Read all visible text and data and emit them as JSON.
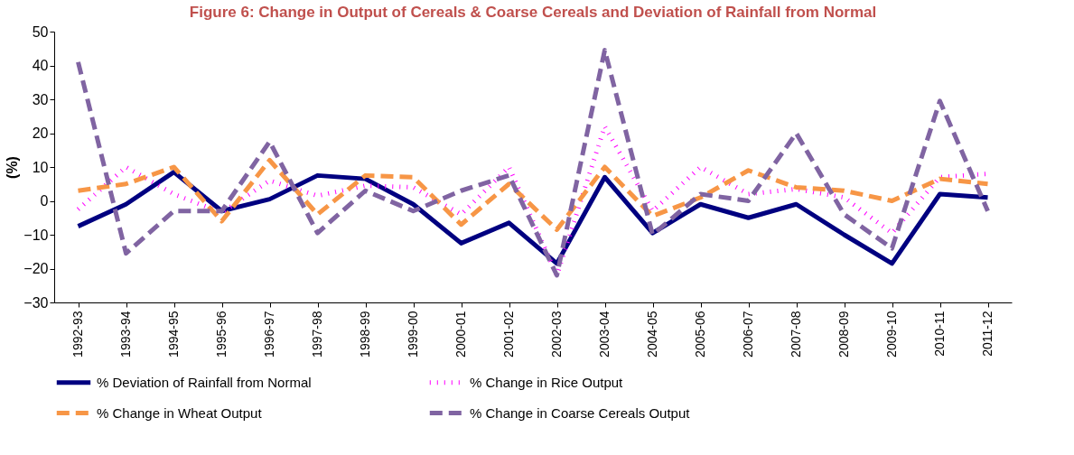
{
  "chart_data": {
    "type": "line",
    "title": "Figure 6: Change in Output of Cereals & Coarse Cereals and Deviation of Rainfall from Normal",
    "ylabel": "(%)",
    "categories": [
      "1992-93",
      "1993-94",
      "1994-95",
      "1995-96",
      "1996-97",
      "1997-98",
      "1998-99",
      "1999-00",
      "2000-01",
      "2001-02",
      "2002-03",
      "2003-04",
      "2004-05",
      "2005-06",
      "2006-07",
      "2007-08",
      "2008-09",
      "2009-10",
      "2010-11",
      "2011-12"
    ],
    "series": [
      {
        "name": "% Deviation of Rainfall from Normal",
        "color": "#000080",
        "line_style": "solid",
        "values": [
          -7.5,
          -1,
          8.5,
          -3,
          0.5,
          7.5,
          6.5,
          -1,
          -12.5,
          -6.5,
          -18.5,
          7,
          -9.5,
          -1,
          -5,
          -1,
          -10,
          -18.5,
          2,
          1
        ]
      },
      {
        "name": "% Change in Rice Output",
        "color": "#ff00ff",
        "line_style": "dotted",
        "values": [
          -2.5,
          10,
          2,
          -3.5,
          6,
          1.5,
          4.5,
          4,
          -4,
          10,
          -22,
          22,
          -3,
          10,
          2,
          3.5,
          1,
          -9.5,
          7,
          8
        ]
      },
      {
        "name": "% Change in Wheat Output",
        "color": "#f79646",
        "line_style": "dashed",
        "values": [
          3,
          5,
          10,
          -6,
          12,
          -4,
          7.5,
          7,
          -7,
          5,
          -8.5,
          10,
          -4.5,
          1,
          9,
          4,
          3,
          0,
          6.5,
          5
        ]
      },
      {
        "name": "% Change in Coarse Cereals Output",
        "color": "#8064a2",
        "line_style": "dashed",
        "values": [
          41,
          -15.5,
          -3,
          -3,
          17.5,
          -9.5,
          3,
          -3,
          3,
          7.5,
          -22,
          44.5,
          -10,
          2,
          0,
          20,
          -4,
          -14,
          29.5,
          -3
        ]
      }
    ],
    "ylim": [
      -30,
      50
    ],
    "yticks": [
      -30,
      -20,
      -10,
      0,
      10,
      20,
      30,
      40,
      50
    ],
    "grid": false,
    "legend": "bottom",
    "marker": "none"
  }
}
